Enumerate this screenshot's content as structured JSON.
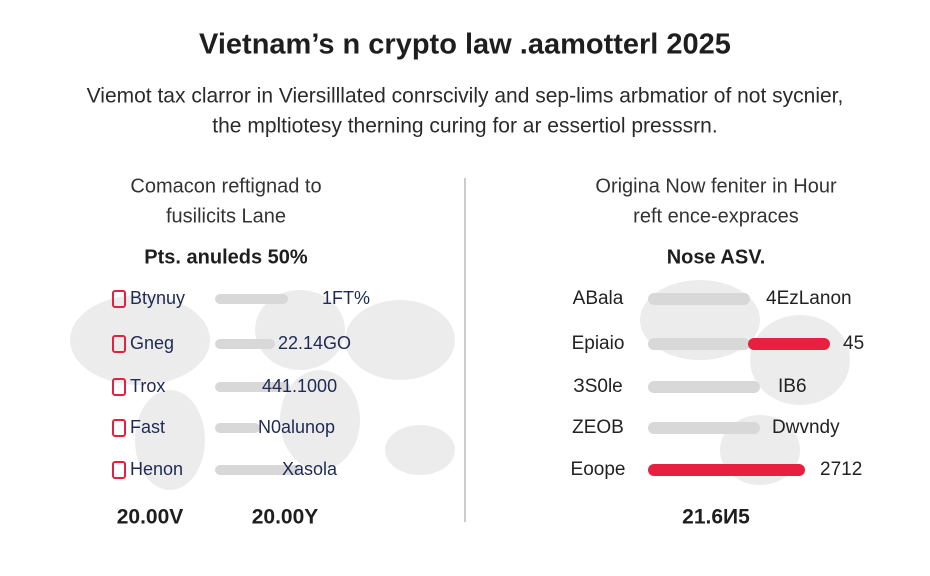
{
  "header": {
    "title": "Vietnam’s n crypto law .aamotterl 2025",
    "subtitle": [
      "Viemot tax clarror in Viersilllated conrscivily and sep-lims arbmatior of not sycnier,",
      "the mpltiotesy therning curing for ar essertiol presssrn."
    ]
  },
  "left_panel": {
    "heading": [
      "Comacon reftignad to",
      "fusilicits Lane"
    ],
    "subheading": "Pts. anuleds 50%",
    "rows": [
      {
        "label": "Btynuy",
        "value": "1FT%"
      },
      {
        "label": "Gneg",
        "value": "22.14GO"
      },
      {
        "label": "Trox",
        "value": "441.1000"
      },
      {
        "label": "Fast",
        "value": "N0alunop"
      },
      {
        "label": "Henon",
        "value": "Xasola"
      }
    ],
    "footer": [
      "20.00V",
      "20.00Y"
    ]
  },
  "right_panel": {
    "heading": [
      "Origina Now feniter in Hour",
      "reft ence-expraces"
    ],
    "subheading": "Nose ASV.",
    "rows": [
      {
        "label": "ABala",
        "value": "4EzLanon"
      },
      {
        "label": "Epiaio",
        "value": "45"
      },
      {
        "label": "ЗS0le",
        "value": "IB6"
      },
      {
        "label": "ZEOB",
        "value": "Dwvndy"
      },
      {
        "label": "Eoope",
        "value": "2712"
      }
    ],
    "footer": "21.6И5"
  }
}
